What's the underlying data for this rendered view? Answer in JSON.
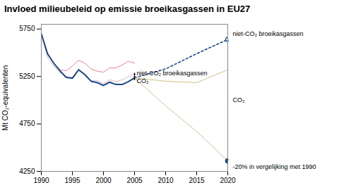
{
  "chart_data": {
    "type": "line",
    "title": "Invloed milieubeleid op emissie broeikasgassen in EU27",
    "ylabel": "Mt CO₂-equivalenten",
    "xlim": [
      1990,
      2020
    ],
    "xticks": [
      1990,
      1995,
      2000,
      2005,
      2010,
      2015,
      2020
    ],
    "ylim": [
      4250,
      5800
    ],
    "yticks": [
      4250,
      4750,
      5250,
      5750
    ],
    "series": [
      {
        "x": [
          1990,
          1991,
          1992,
          1993,
          1994,
          1995,
          1996,
          1997,
          1998,
          1999,
          2000,
          2001,
          2002,
          2003,
          2004,
          2005
        ],
        "values": [
          5700,
          5480,
          5390,
          5320,
          5310,
          5360,
          5420,
          5390,
          5330,
          5305,
          5295,
          5340,
          5340,
          5370,
          5410,
          5390
        ],
        "color": "#e87090",
        "line_style": "solid"
      },
      {
        "x": [
          1990,
          1991,
          1992,
          1993,
          1994,
          1995,
          1996,
          1997,
          1998,
          1999,
          2000,
          2001,
          2002,
          2003,
          2004,
          2005
        ],
        "values": [
          5700,
          5450,
          5360,
          5290,
          5255,
          5240,
          5330,
          5275,
          5205,
          5205,
          5175,
          5215,
          5195,
          5215,
          5245,
          5280
        ],
        "color": "#d8a0b0",
        "line_style": "solid"
      },
      {
        "x": [
          1990,
          1991,
          1992,
          1993,
          1994,
          1995,
          1996,
          1997,
          1998,
          1999,
          2000,
          2001,
          2002,
          2003,
          2004,
          2005
        ],
        "values": [
          5700,
          5490,
          5390,
          5310,
          5240,
          5230,
          5320,
          5270,
          5200,
          5185,
          5155,
          5190,
          5165,
          5165,
          5195,
          5235
        ],
        "color": "#1a4a8a",
        "line_style": "solid"
      },
      {
        "x": [
          2005,
          2010,
          2015,
          2020
        ],
        "values": [
          5235,
          5330,
          5490,
          5640
        ],
        "color": "#1a4a8a",
        "line_style": "dotted"
      },
      {
        "x": [
          2005,
          2010,
          2015,
          2020
        ],
        "values": [
          5235,
          5200,
          5185,
          5320
        ],
        "color": "#c8b878",
        "line_style": "solid"
      },
      {
        "x": [
          2005,
          2010,
          2015,
          2020
        ],
        "values": [
          5235,
          4940,
          4670,
          4360
        ],
        "color": "#c8b888",
        "line_style": "solid"
      }
    ],
    "points": [
      {
        "x": 2020,
        "y": 4360,
        "color": "#1a4a8a",
        "marker": "filled"
      },
      {
        "x": 2020,
        "y": 5640,
        "color": "#1a4a8a",
        "marker": "open"
      }
    ],
    "annotations": [
      {
        "type": "arrow",
        "x": 2005,
        "y": [
          5285,
          5240
        ]
      },
      {
        "type": "arrow",
        "x": 2005,
        "y": [
          5240,
          5215
        ]
      },
      {
        "type": "arrow",
        "x": 2020,
        "y": [
          5640,
          4360
        ]
      },
      {
        "type": "text",
        "text": "niet-CO₂ broeikasgassen",
        "x": 2005,
        "y": 5262.5
      },
      {
        "type": "text",
        "text": "CO₂",
        "x": 2005,
        "y": 5227.5
      },
      {
        "type": "text",
        "text": "niet-CO₂ broeikasgassen",
        "x": 2020,
        "y": 5640
      },
      {
        "type": "text",
        "text": "CO₂",
        "x": 2020,
        "y": 5000
      },
      {
        "type": "text",
        "text": "-20% in vergelijking met 1990",
        "x": 2020,
        "y": 4360
      }
    ]
  }
}
